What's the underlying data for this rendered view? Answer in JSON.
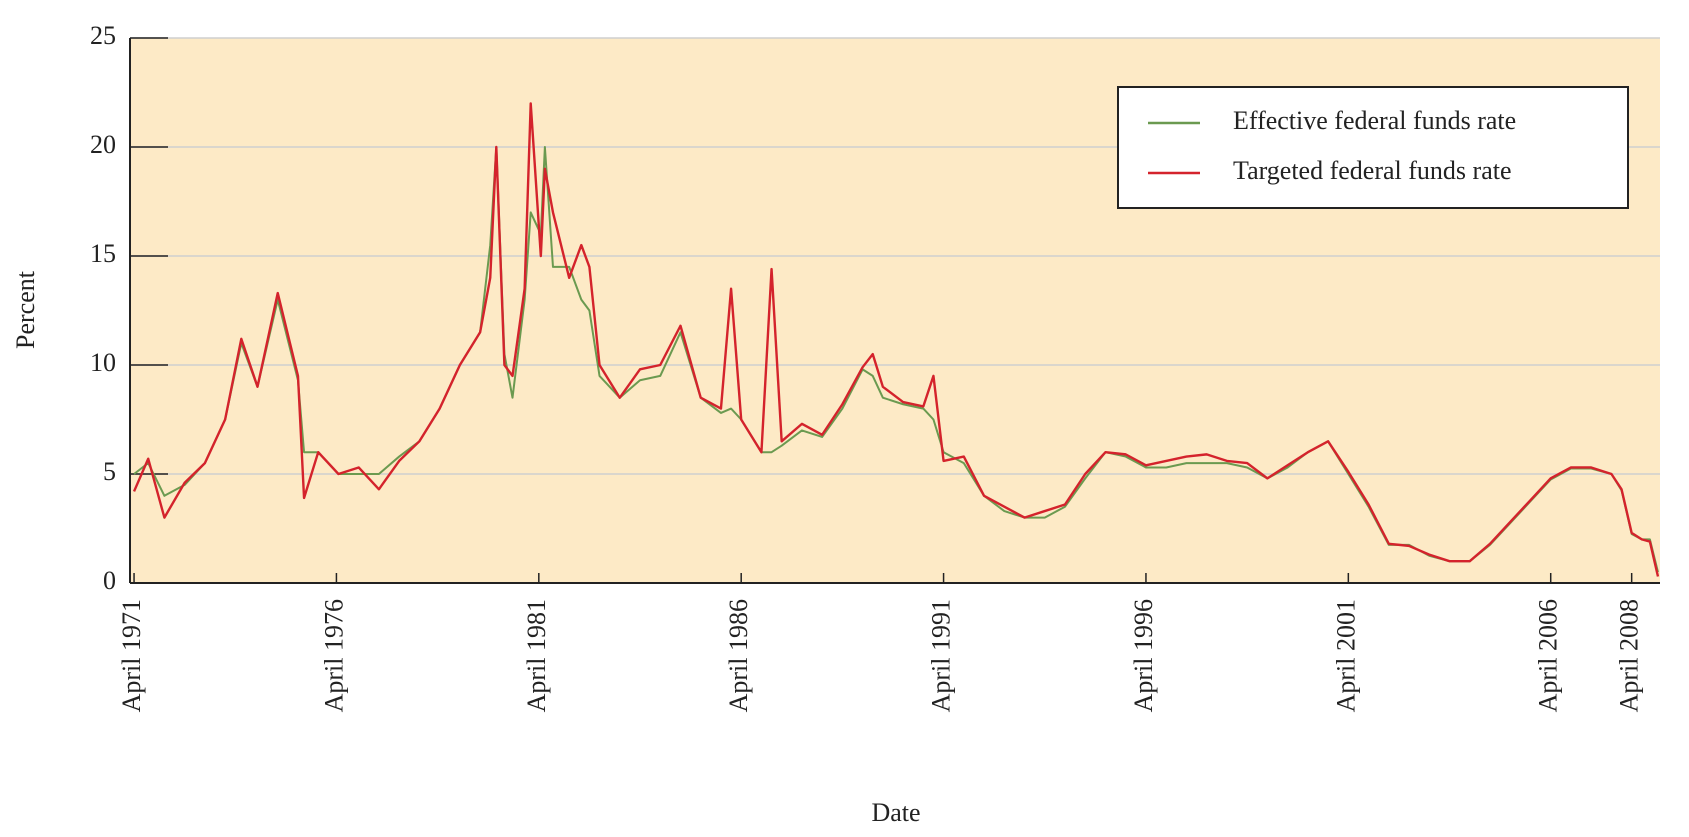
{
  "chart_data": {
    "type": "line",
    "x_label": "Date",
    "y_label": "Percent",
    "xlim": [
      1971.15,
      2008.95
    ],
    "ylim": [
      0,
      25
    ],
    "xticks": [
      {
        "value": 1971.25,
        "label": "April 1971"
      },
      {
        "value": 1976.25,
        "label": "April 1976"
      },
      {
        "value": 1981.25,
        "label": "April 1981"
      },
      {
        "value": 1986.25,
        "label": "April 1986"
      },
      {
        "value": 1991.25,
        "label": "April 1991"
      },
      {
        "value": 1996.25,
        "label": "April 1996"
      },
      {
        "value": 2001.25,
        "label": "April 2001"
      },
      {
        "value": 2006.25,
        "label": "April 2006"
      },
      {
        "value": 2008.25,
        "label": "April 2008"
      }
    ],
    "yticks": [
      0,
      5,
      10,
      15,
      20,
      25
    ],
    "grid": true,
    "legend": "upper right",
    "background": "#fdeac6",
    "x": [
      1971.25,
      1971.6,
      1972.0,
      1972.5,
      1973.0,
      1973.5,
      1973.9,
      1974.3,
      1974.8,
      1975.3,
      1975.45,
      1975.8,
      1976.3,
      1976.8,
      1977.3,
      1977.8,
      1978.3,
      1978.8,
      1979.3,
      1979.8,
      1980.05,
      1980.2,
      1980.4,
      1980.6,
      1980.9,
      1981.05,
      1981.3,
      1981.4,
      1981.6,
      1982.0,
      1982.3,
      1982.5,
      1982.75,
      1983.25,
      1983.75,
      1984.25,
      1984.75,
      1985.25,
      1985.75,
      1986.0,
      1986.25,
      1986.75,
      1987.0,
      1987.25,
      1987.75,
      1988.25,
      1988.75,
      1989.25,
      1989.5,
      1989.75,
      1990.25,
      1990.75,
      1991.0,
      1991.25,
      1991.75,
      1992.25,
      1992.75,
      1993.25,
      1993.75,
      1994.25,
      1994.75,
      1995.25,
      1995.75,
      1996.25,
      1996.75,
      1997.25,
      1997.75,
      1998.25,
      1998.75,
      1999.25,
      1999.75,
      2000.25,
      2000.75,
      2001.25,
      2001.75,
      2002.25,
      2002.75,
      2003.25,
      2003.75,
      2004.25,
      2004.75,
      2005.25,
      2005.75,
      2006.25,
      2006.75,
      2007.25,
      2007.75,
      2008.0,
      2008.25,
      2008.5,
      2008.7,
      2008.9
    ],
    "series": [
      {
        "name": "Effective federal funds rate",
        "color": "#6b9a50",
        "values": [
          5.0,
          5.5,
          4.0,
          4.5,
          5.5,
          7.5,
          11.0,
          9.0,
          13.0,
          9.3,
          6.0,
          6.0,
          5.0,
          5.0,
          5.0,
          5.8,
          6.5,
          8.0,
          10.0,
          11.5,
          15.5,
          20.0,
          10.5,
          8.5,
          13.0,
          17.0,
          16.0,
          20.0,
          14.5,
          14.5,
          13.0,
          12.5,
          9.5,
          8.5,
          9.3,
          9.5,
          11.5,
          8.5,
          7.8,
          8.0,
          7.5,
          6.0,
          6.0,
          6.3,
          7.0,
          6.7,
          8.0,
          9.8,
          9.5,
          8.5,
          8.2,
          8.0,
          7.5,
          6.0,
          5.5,
          4.0,
          3.3,
          3.0,
          3.0,
          3.5,
          4.8,
          6.0,
          5.8,
          5.3,
          5.3,
          5.5,
          5.5,
          5.5,
          5.3,
          4.8,
          5.3,
          6.0,
          6.5,
          5.0,
          3.5,
          1.75,
          1.75,
          1.25,
          1.0,
          1.0,
          1.75,
          2.75,
          3.75,
          4.75,
          5.25,
          5.25,
          5.0,
          4.25,
          2.25,
          2.0,
          2.0,
          0.5
        ]
      },
      {
        "name": "Targeted federal funds rate",
        "color": "#d4232c",
        "values": [
          4.2,
          5.7,
          3.0,
          4.6,
          5.5,
          7.5,
          11.2,
          9.0,
          13.3,
          9.5,
          3.9,
          6.0,
          5.0,
          5.3,
          4.3,
          5.6,
          6.5,
          8.0,
          10.0,
          11.5,
          14.0,
          20.0,
          10.0,
          9.5,
          13.5,
          22.0,
          15.0,
          19.0,
          17.0,
          14.0,
          15.5,
          14.5,
          10.0,
          8.5,
          9.8,
          10.0,
          11.8,
          8.5,
          8.0,
          13.5,
          7.5,
          6.0,
          14.4,
          6.5,
          7.3,
          6.8,
          8.2,
          9.9,
          10.5,
          9.0,
          8.3,
          8.1,
          9.5,
          5.6,
          5.8,
          4.0,
          3.5,
          3.0,
          3.3,
          3.6,
          5.0,
          6.0,
          5.9,
          5.4,
          5.6,
          5.8,
          5.9,
          5.6,
          5.5,
          4.8,
          5.4,
          6.0,
          6.5,
          5.1,
          3.6,
          1.8,
          1.7,
          1.3,
          1.0,
          1.0,
          1.8,
          2.8,
          3.8,
          4.8,
          5.3,
          5.3,
          5.0,
          4.3,
          2.3,
          2.0,
          1.9,
          0.3
        ]
      }
    ]
  }
}
